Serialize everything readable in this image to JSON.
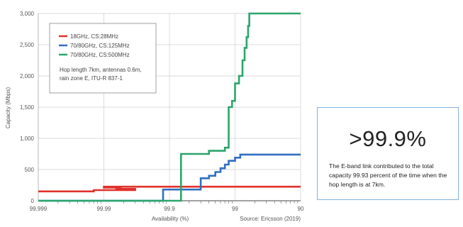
{
  "chart_data": {
    "type": "line",
    "step": true,
    "xlabel": "Availability (%)",
    "ylabel": "Capacity (Mbps)",
    "source": "Source: Ericsson (2019)",
    "x_scale": "log-unavailability",
    "x_ticks": [
      "99.999",
      "99.99",
      "99.9",
      "99",
      "90"
    ],
    "x_tick_values": [
      99.999,
      99.99,
      99.9,
      99,
      90
    ],
    "y_ticks": [
      "0",
      "500",
      "1,000",
      "1,500",
      "2,000",
      "2,500",
      "3,000"
    ],
    "ylim": [
      0,
      3000
    ],
    "xlim": [
      99.999,
      90
    ],
    "grid": true,
    "legend_placement": "top-left",
    "series": [
      {
        "name": "18GHz, CS:28MHz",
        "color": "#e0312b",
        "points": [
          [
            99.999,
            150
          ],
          [
            99.993,
            150
          ],
          [
            99.993,
            170
          ],
          [
            99.97,
            170
          ],
          [
            99.97,
            190
          ],
          [
            99.985,
            190
          ],
          [
            99.982,
            190
          ],
          [
            99.982,
            210
          ],
          [
            99.99,
            210
          ],
          [
            99.99,
            225
          ],
          [
            90,
            225
          ]
        ]
      },
      {
        "name": "70/80GHz, CS:125MHz",
        "color": "#2f6fc2",
        "points": [
          [
            99.999,
            0
          ],
          [
            99.92,
            0
          ],
          [
            99.92,
            180
          ],
          [
            99.7,
            180
          ],
          [
            99.7,
            360
          ],
          [
            99.6,
            360
          ],
          [
            99.6,
            400
          ],
          [
            99.5,
            400
          ],
          [
            99.5,
            460
          ],
          [
            99.4,
            460
          ],
          [
            99.4,
            520
          ],
          [
            99.3,
            520
          ],
          [
            99.3,
            580
          ],
          [
            99.2,
            580
          ],
          [
            99.2,
            640
          ],
          [
            99.0,
            640
          ],
          [
            99.0,
            690
          ],
          [
            98.8,
            690
          ],
          [
            98.8,
            740
          ],
          [
            90,
            740
          ]
        ]
      },
      {
        "name": "70/80GHz, CS:500MHz",
        "color": "#2aa66b",
        "points": [
          [
            99.999,
            0
          ],
          [
            99.85,
            0
          ],
          [
            99.85,
            750
          ],
          [
            99.6,
            750
          ],
          [
            99.6,
            800
          ],
          [
            99.3,
            800
          ],
          [
            99.3,
            850
          ],
          [
            99.2,
            850
          ],
          [
            99.2,
            1500
          ],
          [
            99.1,
            1500
          ],
          [
            99.1,
            1600
          ],
          [
            99.0,
            1600
          ],
          [
            99.0,
            1880
          ],
          [
            98.85,
            1880
          ],
          [
            98.85,
            2000
          ],
          [
            98.7,
            2000
          ],
          [
            98.7,
            2250
          ],
          [
            98.6,
            2250
          ],
          [
            98.6,
            2450
          ],
          [
            98.5,
            2450
          ],
          [
            98.5,
            2620
          ],
          [
            98.42,
            2620
          ],
          [
            98.42,
            2800
          ],
          [
            98.35,
            2800
          ],
          [
            98.35,
            3000
          ],
          [
            90,
            3000
          ]
        ]
      }
    ],
    "annotation": "Hop length 7km, antennas 0.6m, rain zone E, ITU-R 837-1"
  },
  "callout": {
    "headline": ">99.9%",
    "text": "The E-band link contributed to the total capacity 99.93 percent of the time when the hop length is at 7km."
  }
}
